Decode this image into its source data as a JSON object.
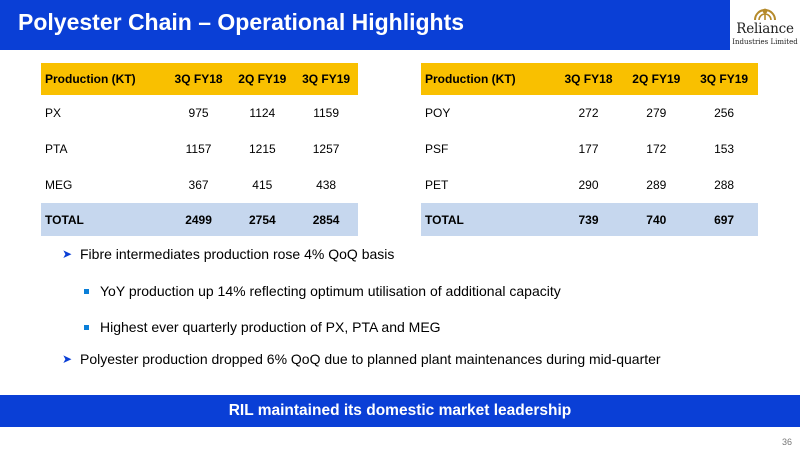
{
  "slide": {
    "title": "Polyester Chain – Operational Highlights",
    "page_number": "36",
    "banner": "RIL maintained its domestic market leadership"
  },
  "logo": {
    "name": "Reliance",
    "subtitle": "Industries Limited"
  },
  "table_left": {
    "headers": [
      "Production (KT)",
      "3Q FY18",
      "2Q FY19",
      "3Q FY19"
    ],
    "rows": [
      [
        "PX",
        "975",
        "1124",
        "1159"
      ],
      [
        "PTA",
        "1157",
        "1215",
        "1257"
      ],
      [
        "MEG",
        "367",
        "415",
        "438"
      ]
    ],
    "total": [
      "TOTAL",
      "2499",
      "2754",
      "2854"
    ]
  },
  "table_right": {
    "headers": [
      "Production (KT)",
      "3Q FY18",
      "2Q FY19",
      "3Q FY19"
    ],
    "rows": [
      [
        "POY",
        "272",
        "279",
        "256"
      ],
      [
        "PSF",
        "177",
        "172",
        "153"
      ],
      [
        "PET",
        "290",
        "289",
        "288"
      ]
    ],
    "total": [
      "TOTAL",
      "739",
      "740",
      "697"
    ]
  },
  "bullets": [
    "Fibre intermediates production rose 4% QoQ basis",
    "YoY production up 14% reflecting optimum utilisation of additional capacity",
    "Highest ever quarterly production of PX, PTA and MEG",
    "Polyester production dropped 6% QoQ due to planned plant maintenances during mid-quarter"
  ],
  "colors": {
    "brand_blue": "#0a3fd6",
    "header_yellow": "#f9c000",
    "total_row_blue": "#c6d7ee"
  }
}
